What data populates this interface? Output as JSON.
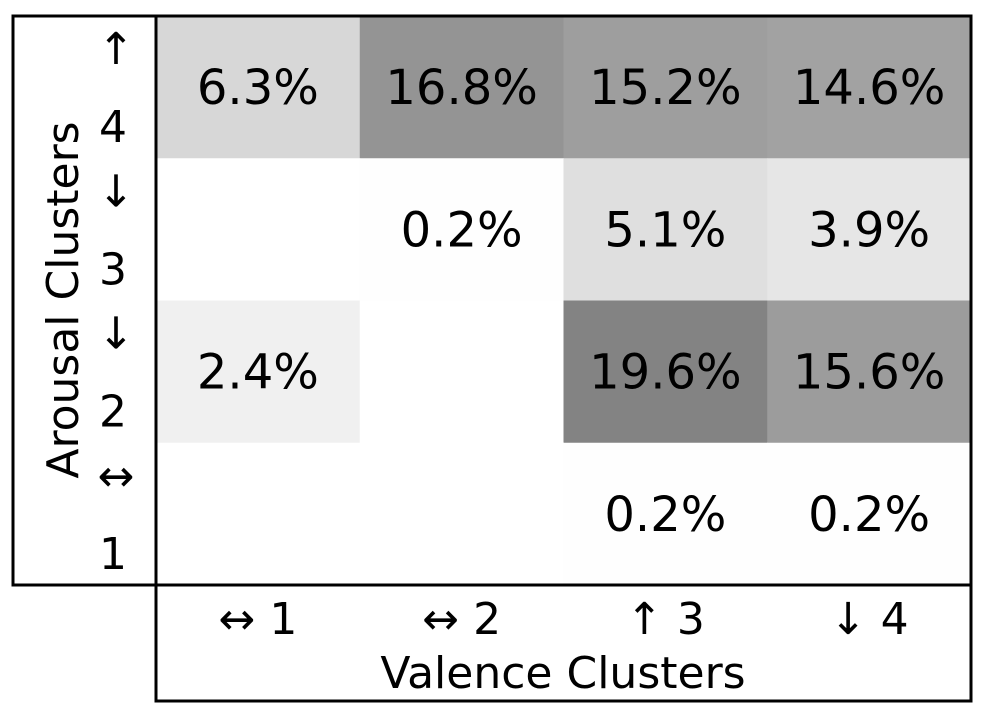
{
  "chart_data": {
    "type": "heatmap",
    "title": "",
    "xlabel": "Valence Clusters",
    "ylabel": "Arousal Clusters",
    "x_categories": [
      {
        "arrow": "↔",
        "label": "1"
      },
      {
        "arrow": "↔",
        "label": "2"
      },
      {
        "arrow": "↑",
        "label": "3"
      },
      {
        "arrow": "↓",
        "label": "4"
      }
    ],
    "y_categories": [
      {
        "arrow": "↑",
        "label": "4"
      },
      {
        "arrow": "↓",
        "label": "3"
      },
      {
        "arrow": "↓",
        "label": "2"
      },
      {
        "arrow": "↔",
        "label": "1"
      }
    ],
    "values": [
      [
        6.3,
        16.8,
        15.2,
        14.6
      ],
      [
        null,
        0.2,
        5.1,
        3.9
      ],
      [
        2.4,
        null,
        19.6,
        15.6
      ],
      [
        null,
        null,
        0.2,
        0.2
      ]
    ],
    "value_labels": [
      [
        "6.3%",
        "16.8%",
        "15.2%",
        "14.6%"
      ],
      [
        "",
        "0.2%",
        "5.1%",
        "3.9%"
      ],
      [
        "2.4%",
        "",
        "19.6%",
        "15.6%"
      ],
      [
        "",
        "",
        "0.2%",
        "0.2%"
      ]
    ],
    "colormap": {
      "low": "#ffffff",
      "high": "#808080"
    },
    "grid": false,
    "legend": "none"
  }
}
